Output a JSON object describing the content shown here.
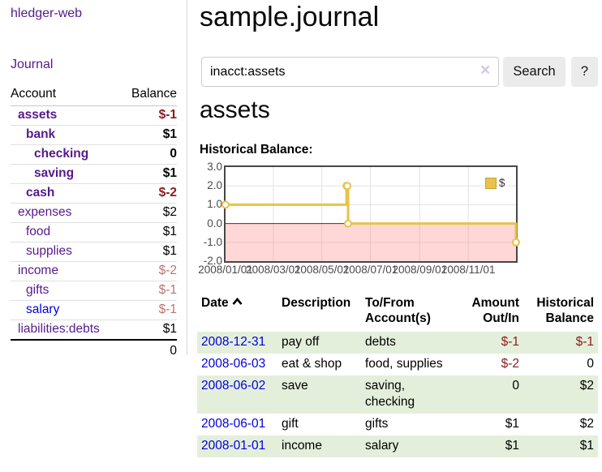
{
  "sidebar": {
    "app_title": "hledger-web",
    "journal_link": "Journal",
    "accounts": {
      "col_account": "Account",
      "col_balance": "Balance",
      "rows": [
        {
          "name": "assets",
          "balance": "$-1"
        },
        {
          "name": "bank",
          "balance": "$1"
        },
        {
          "name": "checking",
          "balance": "0"
        },
        {
          "name": "saving",
          "balance": "$1"
        },
        {
          "name": "cash",
          "balance": "$-2"
        },
        {
          "name": "expenses",
          "balance": "$2"
        },
        {
          "name": "food",
          "balance": "$1"
        },
        {
          "name": "supplies",
          "balance": "$1"
        },
        {
          "name": "income",
          "balance": "$-2"
        },
        {
          "name": "gifts",
          "balance": "$-1"
        },
        {
          "name": "salary",
          "balance": "$-1"
        },
        {
          "name": "liabilities:debts",
          "balance": "$1"
        }
      ],
      "total": "0"
    }
  },
  "main": {
    "title": "sample.journal",
    "search": {
      "value": "inacct:assets",
      "clear_label": "×",
      "button_label": "Search",
      "help_label": "?"
    },
    "account_heading": "assets",
    "chart_heading": "Historical Balance:",
    "register": {
      "headers": {
        "date": "Date",
        "description": "Description",
        "accounts": "To/From Account(s)",
        "amount": "Amount Out/In",
        "balance": "Historical Balance"
      },
      "rows": [
        {
          "date": "2008-12-31",
          "description": "pay off",
          "accounts": "debts",
          "amount": "$-1",
          "balance": "$-1"
        },
        {
          "date": "2008-06-03",
          "description": "eat & shop",
          "accounts": "food, supplies",
          "amount": "$-2",
          "balance": "0"
        },
        {
          "date": "2008-06-02",
          "description": "save",
          "accounts": "saving, checking",
          "amount": "0",
          "balance": "$2"
        },
        {
          "date": "2008-06-01",
          "description": "gift",
          "accounts": "gifts",
          "amount": "$1",
          "balance": "$2"
        },
        {
          "date": "2008-01-01",
          "description": "income",
          "accounts": "salary",
          "amount": "$1",
          "balance": "$1"
        }
      ]
    }
  },
  "chart_data": {
    "type": "line",
    "title": "Historical Balance:",
    "step": true,
    "series": [
      {
        "name": "$",
        "color": "#e8c24a",
        "points": [
          {
            "date": "2008-01-01",
            "value": 1
          },
          {
            "date": "2008-06-01",
            "value": 2
          },
          {
            "date": "2008-06-02",
            "value": 2
          },
          {
            "date": "2008-06-03",
            "value": 0
          },
          {
            "date": "2008-12-31",
            "value": -1
          }
        ]
      }
    ],
    "x_range": [
      "2008-01-01",
      "2008-12-31"
    ],
    "x_ticks": [
      {
        "date": "2008-01-01",
        "label": "2008/01/01"
      },
      {
        "date": "2008-03-01",
        "label": "2008/03/01"
      },
      {
        "date": "2008-05-01",
        "label": "2008/05/01"
      },
      {
        "date": "2008-07-01",
        "label": "2008/07/01"
      },
      {
        "date": "2008-09-01",
        "label": "2008/09/01"
      },
      {
        "date": "2008-11-01",
        "label": "2008/11/01"
      }
    ],
    "y_ticks": [
      3,
      2,
      1,
      0,
      -1,
      -2
    ],
    "ylim": [
      -2,
      3
    ],
    "grid": true,
    "legend": {
      "label": "$",
      "position": "top-right"
    },
    "negative_region_fill": "rgba(255,110,110,0.28)",
    "zero_line_color": "#8b1a1a"
  }
}
